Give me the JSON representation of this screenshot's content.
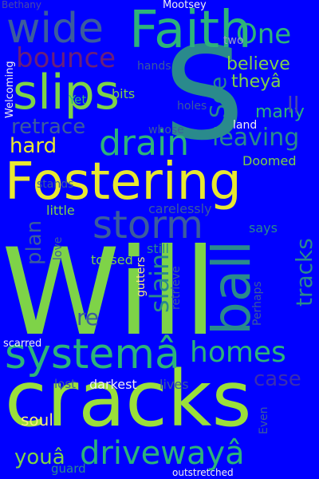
{
  "words": {
    "will": "Will",
    "cracks": "cracks",
    "s": "S",
    "fostering": "Fostering",
    "faith": "Faith",
    "system": "systemâ",
    "slips": "slips",
    "driveway": "drivewayâ",
    "storm": "storm",
    "ball": "ball",
    "drain": "drain",
    "wide": "wide",
    "homes": "homes",
    "bounce": "bounce",
    "retrace": "retrace",
    "leaving": "leaving",
    "slain": "slain",
    "tracks": "tracks",
    "hard": "hard",
    "plan": "plan",
    "see": "See",
    "one": "One",
    "believe": "believe",
    "theya": "theyâ",
    "many": "many",
    "ll": "ll",
    "you": "youâ",
    "case": "case",
    "re": "re",
    "soul": "soul",
    "darkest": "darkest",
    "lives": "lives",
    "lost": "lost",
    "guard": "guard",
    "outstretched": "outstretched",
    "even": "Even",
    "scarred": "scarred",
    "gutters": "gutters",
    "tossed": "tossed",
    "retrieve": "retrieve",
    "perhaps": "Perhaps",
    "still": "still",
    "says": "says",
    "carelessly": "carelessly",
    "little": "little",
    "love": "love",
    "stands": "stands",
    "doomed": "Doomed",
    "land": "land",
    "whose": "whose",
    "holes": "holes",
    "bits": "bits",
    "yet": "Yet",
    "hands": "hands",
    "two": "two",
    "welcoming": "Welcoming",
    "bethany": "Bethany",
    "mootsey": "Mootsey"
  },
  "colors": {
    "background": "#0000ff",
    "lime": "#7ed348",
    "lime_bright": "#9bdf3a",
    "green": "#2db37a",
    "teal": "#2a8a8c",
    "teal_dark": "#1f7f8a",
    "slate": "#3b5c9e",
    "indigo": "#4a4aa8",
    "purple": "#3a2fb0",
    "maroon": "#6a1f7a",
    "yellow": "#e8e830",
    "yellow_pale": "#f3ec7a",
    "white": "#f0f0f0",
    "grey": "#9aa0c8"
  }
}
